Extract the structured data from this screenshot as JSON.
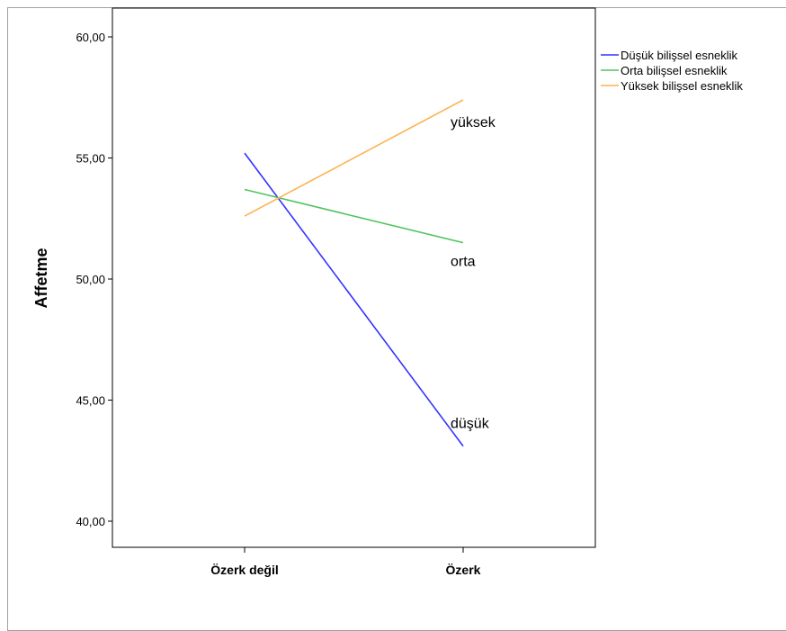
{
  "chart_data": {
    "type": "line",
    "categories": [
      "Özerk değil",
      "Özerk"
    ],
    "ylabel": "Affetme",
    "xlabel": "",
    "ylim": [
      40,
      60
    ],
    "yticks": [
      "40,00",
      "45,00",
      "50,00",
      "55,00",
      "60,00"
    ],
    "ytick_values": [
      40,
      45,
      50,
      55,
      60
    ],
    "grid": false,
    "legend_position": "right",
    "series": [
      {
        "name": "Düşük bilişsel esneklik",
        "values": [
          55.2,
          43.1
        ],
        "color": "#3333ff"
      },
      {
        "name": "Orta bilişsel esneklik",
        "values": [
          53.7,
          51.5
        ],
        "color": "#52c460"
      },
      {
        "name": "Yüksek bilişsel esneklik",
        "values": [
          52.6,
          57.4
        ],
        "color": "#ffb04f"
      }
    ],
    "annotations": [
      {
        "text": "yüksek",
        "series": 2
      },
      {
        "text": "orta",
        "series": 1
      },
      {
        "text": "düşük",
        "series": 0
      }
    ]
  }
}
